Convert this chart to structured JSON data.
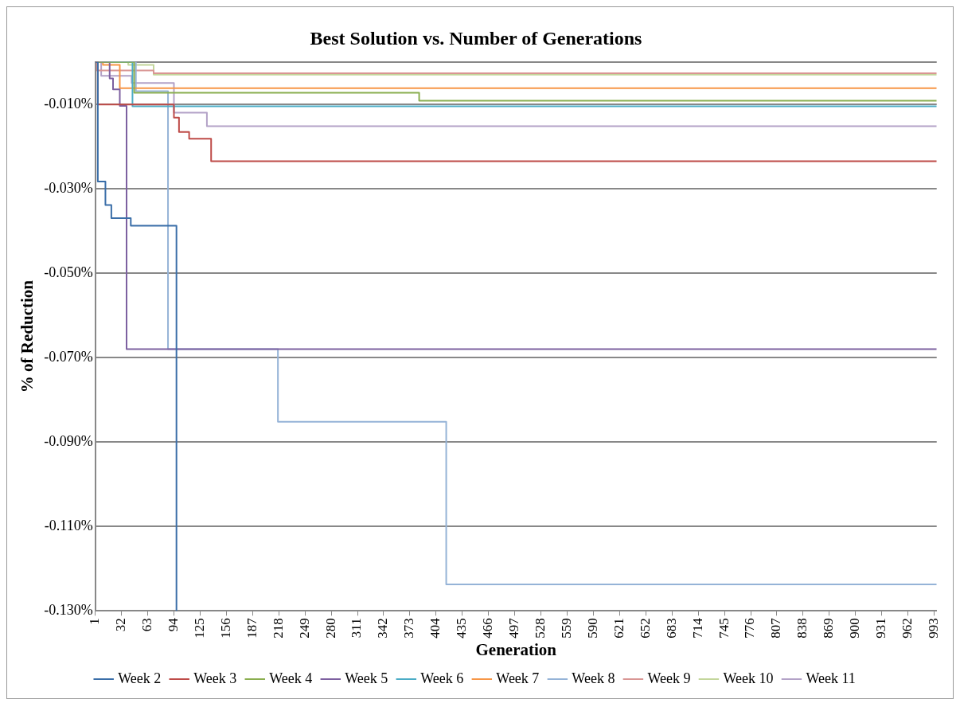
{
  "chart_data": {
    "type": "step",
    "title": "Best Solution vs. Number of Generations",
    "xlabel": "Generation",
    "ylabel": "% of Reduction",
    "xlim": [
      1,
      996
    ],
    "xticks": [
      1,
      32,
      63,
      94,
      125,
      156,
      187,
      218,
      249,
      280,
      311,
      342,
      373,
      404,
      435,
      466,
      497,
      528,
      559,
      590,
      621,
      652,
      683,
      714,
      745,
      776,
      807,
      838,
      869,
      900,
      931,
      962,
      993
    ],
    "ylim": [
      -0.13,
      0
    ],
    "yticks": [
      {
        "value": -0.13,
        "label": "-0.130%"
      },
      {
        "value": -0.11,
        "label": "-0.110%"
      },
      {
        "value": -0.09,
        "label": "-0.090%"
      },
      {
        "value": -0.07,
        "label": "-0.070%"
      },
      {
        "value": -0.05,
        "label": "-0.050%"
      },
      {
        "value": -0.03,
        "label": "-0.030%"
      },
      {
        "value": -0.01,
        "label": "-0.010%"
      },
      {
        "value": 0,
        "label": null
      }
    ],
    "grid": "y",
    "legend": "bottom",
    "series": [
      {
        "name": "Week 2",
        "color": "#3a6ea8",
        "x": [
          1,
          4,
          13,
          20,
          43,
          97
        ],
        "values": [
          0,
          -0.0283,
          -0.0339,
          -0.037,
          -0.0388,
          -0.13
        ]
      },
      {
        "name": "Week 3",
        "color": "#be4b48",
        "x": [
          1,
          4,
          94,
          100,
          112,
          138,
          996
        ],
        "values": [
          0,
          -0.0101,
          -0.0132,
          -0.0166,
          -0.0182,
          -0.0235,
          -0.0235
        ]
      },
      {
        "name": "Week 4",
        "color": "#8aae4f",
        "x": [
          1,
          47,
          384,
          996
        ],
        "values": [
          0,
          -0.0073,
          -0.0092,
          -0.0092
        ]
      },
      {
        "name": "Week 5",
        "color": "#7d60a0",
        "x": [
          1,
          18,
          22,
          30,
          38,
          996
        ],
        "values": [
          0,
          -0.0039,
          -0.0065,
          -0.0104,
          -0.068,
          -0.068
        ]
      },
      {
        "name": "Week 6",
        "color": "#4bacc6",
        "x": [
          1,
          45,
          996
        ],
        "values": [
          0,
          -0.0105,
          -0.0105
        ]
      },
      {
        "name": "Week 7",
        "color": "#f79646",
        "x": [
          1,
          10,
          30,
          996
        ],
        "values": [
          0,
          -0.0007,
          -0.0062,
          -0.0062
        ]
      },
      {
        "name": "Week 8",
        "color": "#95b3d7",
        "x": [
          1,
          49,
          87,
          217,
          416,
          996
        ],
        "values": [
          0,
          -0.0069,
          -0.068,
          -0.0852,
          -0.1237,
          -0.1237
        ]
      },
      {
        "name": "Week 9",
        "color": "#d99694",
        "x": [
          1,
          3,
          70,
          996
        ],
        "values": [
          0,
          -0.002,
          -0.0027,
          -0.0027
        ]
      },
      {
        "name": "Week 10",
        "color": "#c3d69b",
        "x": [
          1,
          40,
          70,
          996
        ],
        "values": [
          0,
          -0.0007,
          -0.003,
          -0.003
        ]
      },
      {
        "name": "Week 11",
        "color": "#b3a2c7",
        "x": [
          1,
          8,
          44,
          94,
          133,
          996
        ],
        "values": [
          0,
          -0.0033,
          -0.005,
          -0.012,
          -0.0152,
          -0.0152
        ]
      }
    ]
  }
}
